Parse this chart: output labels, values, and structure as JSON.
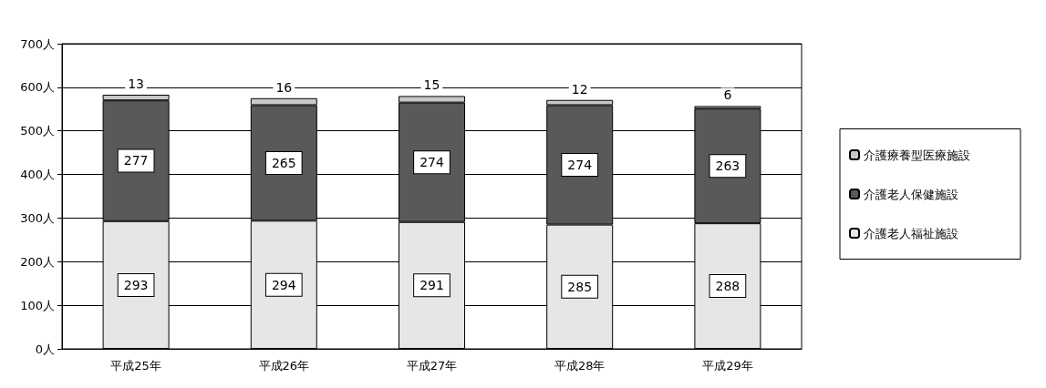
{
  "chart_data": {
    "type": "bar",
    "stacked": true,
    "categories": [
      "平成25年",
      "平成26年",
      "平成27年",
      "平成28年",
      "平成29年"
    ],
    "series": [
      {
        "name": "介護老人福祉施設",
        "color": "#e6e6e6",
        "values": [
          293,
          294,
          291,
          285,
          288
        ]
      },
      {
        "name": "介護老人保健施設",
        "color": "#595959",
        "values": [
          277,
          265,
          274,
          274,
          263
        ]
      },
      {
        "name": "介護療養型医療施設",
        "color": "#c8c8c8",
        "values": [
          13,
          16,
          15,
          12,
          6
        ]
      }
    ],
    "ylim": [
      0,
      700
    ],
    "yticks": [
      {
        "value": 0,
        "label": "0人"
      },
      {
        "value": 100,
        "label": "100人"
      },
      {
        "value": 200,
        "label": "200人"
      },
      {
        "value": 300,
        "label": "300人"
      },
      {
        "value": 400,
        "label": "400人"
      },
      {
        "value": 500,
        "label": "500人"
      },
      {
        "value": 600,
        "label": "600人"
      },
      {
        "value": 700,
        "label": "700人"
      }
    ],
    "grid": "y",
    "legend": "right",
    "data_labels": true
  }
}
